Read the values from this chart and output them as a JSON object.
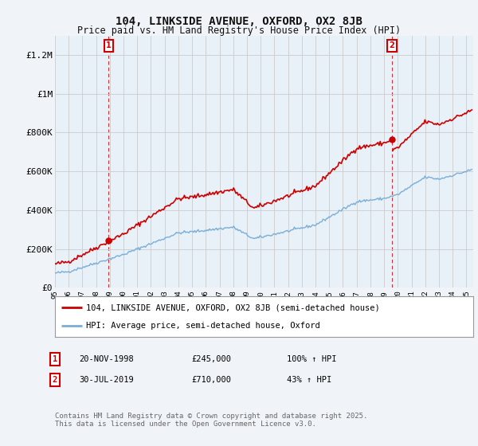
{
  "title": "104, LINKSIDE AVENUE, OXFORD, OX2 8JB",
  "subtitle": "Price paid vs. HM Land Registry's House Price Index (HPI)",
  "legend_line1": "104, LINKSIDE AVENUE, OXFORD, OX2 8JB (semi-detached house)",
  "legend_line2": "HPI: Average price, semi-detached house, Oxford",
  "annotation1_label": "1",
  "annotation1_date": "20-NOV-1998",
  "annotation1_price": "£245,000",
  "annotation1_hpi": "100% ↑ HPI",
  "annotation2_label": "2",
  "annotation2_date": "30-JUL-2019",
  "annotation2_price": "£710,000",
  "annotation2_hpi": "43% ↑ HPI",
  "footer": "Contains HM Land Registry data © Crown copyright and database right 2025.\nThis data is licensed under the Open Government Licence v3.0.",
  "ylim": [
    0,
    1300000
  ],
  "yticks": [
    0,
    200000,
    400000,
    600000,
    800000,
    1000000,
    1200000
  ],
  "ytick_labels": [
    "£0",
    "£200K",
    "£400K",
    "£600K",
    "£800K",
    "£1M",
    "£1.2M"
  ],
  "property_color": "#cc0000",
  "hpi_color": "#7aaed6",
  "purchase1_year": 1998.92,
  "purchase1_price": 245000,
  "purchase2_year": 2019.58,
  "purchase2_price": 710000,
  "background_color": "#f0f4f8",
  "plot_bg_color": "#e8f0f8",
  "grid_color": "#cccccc"
}
